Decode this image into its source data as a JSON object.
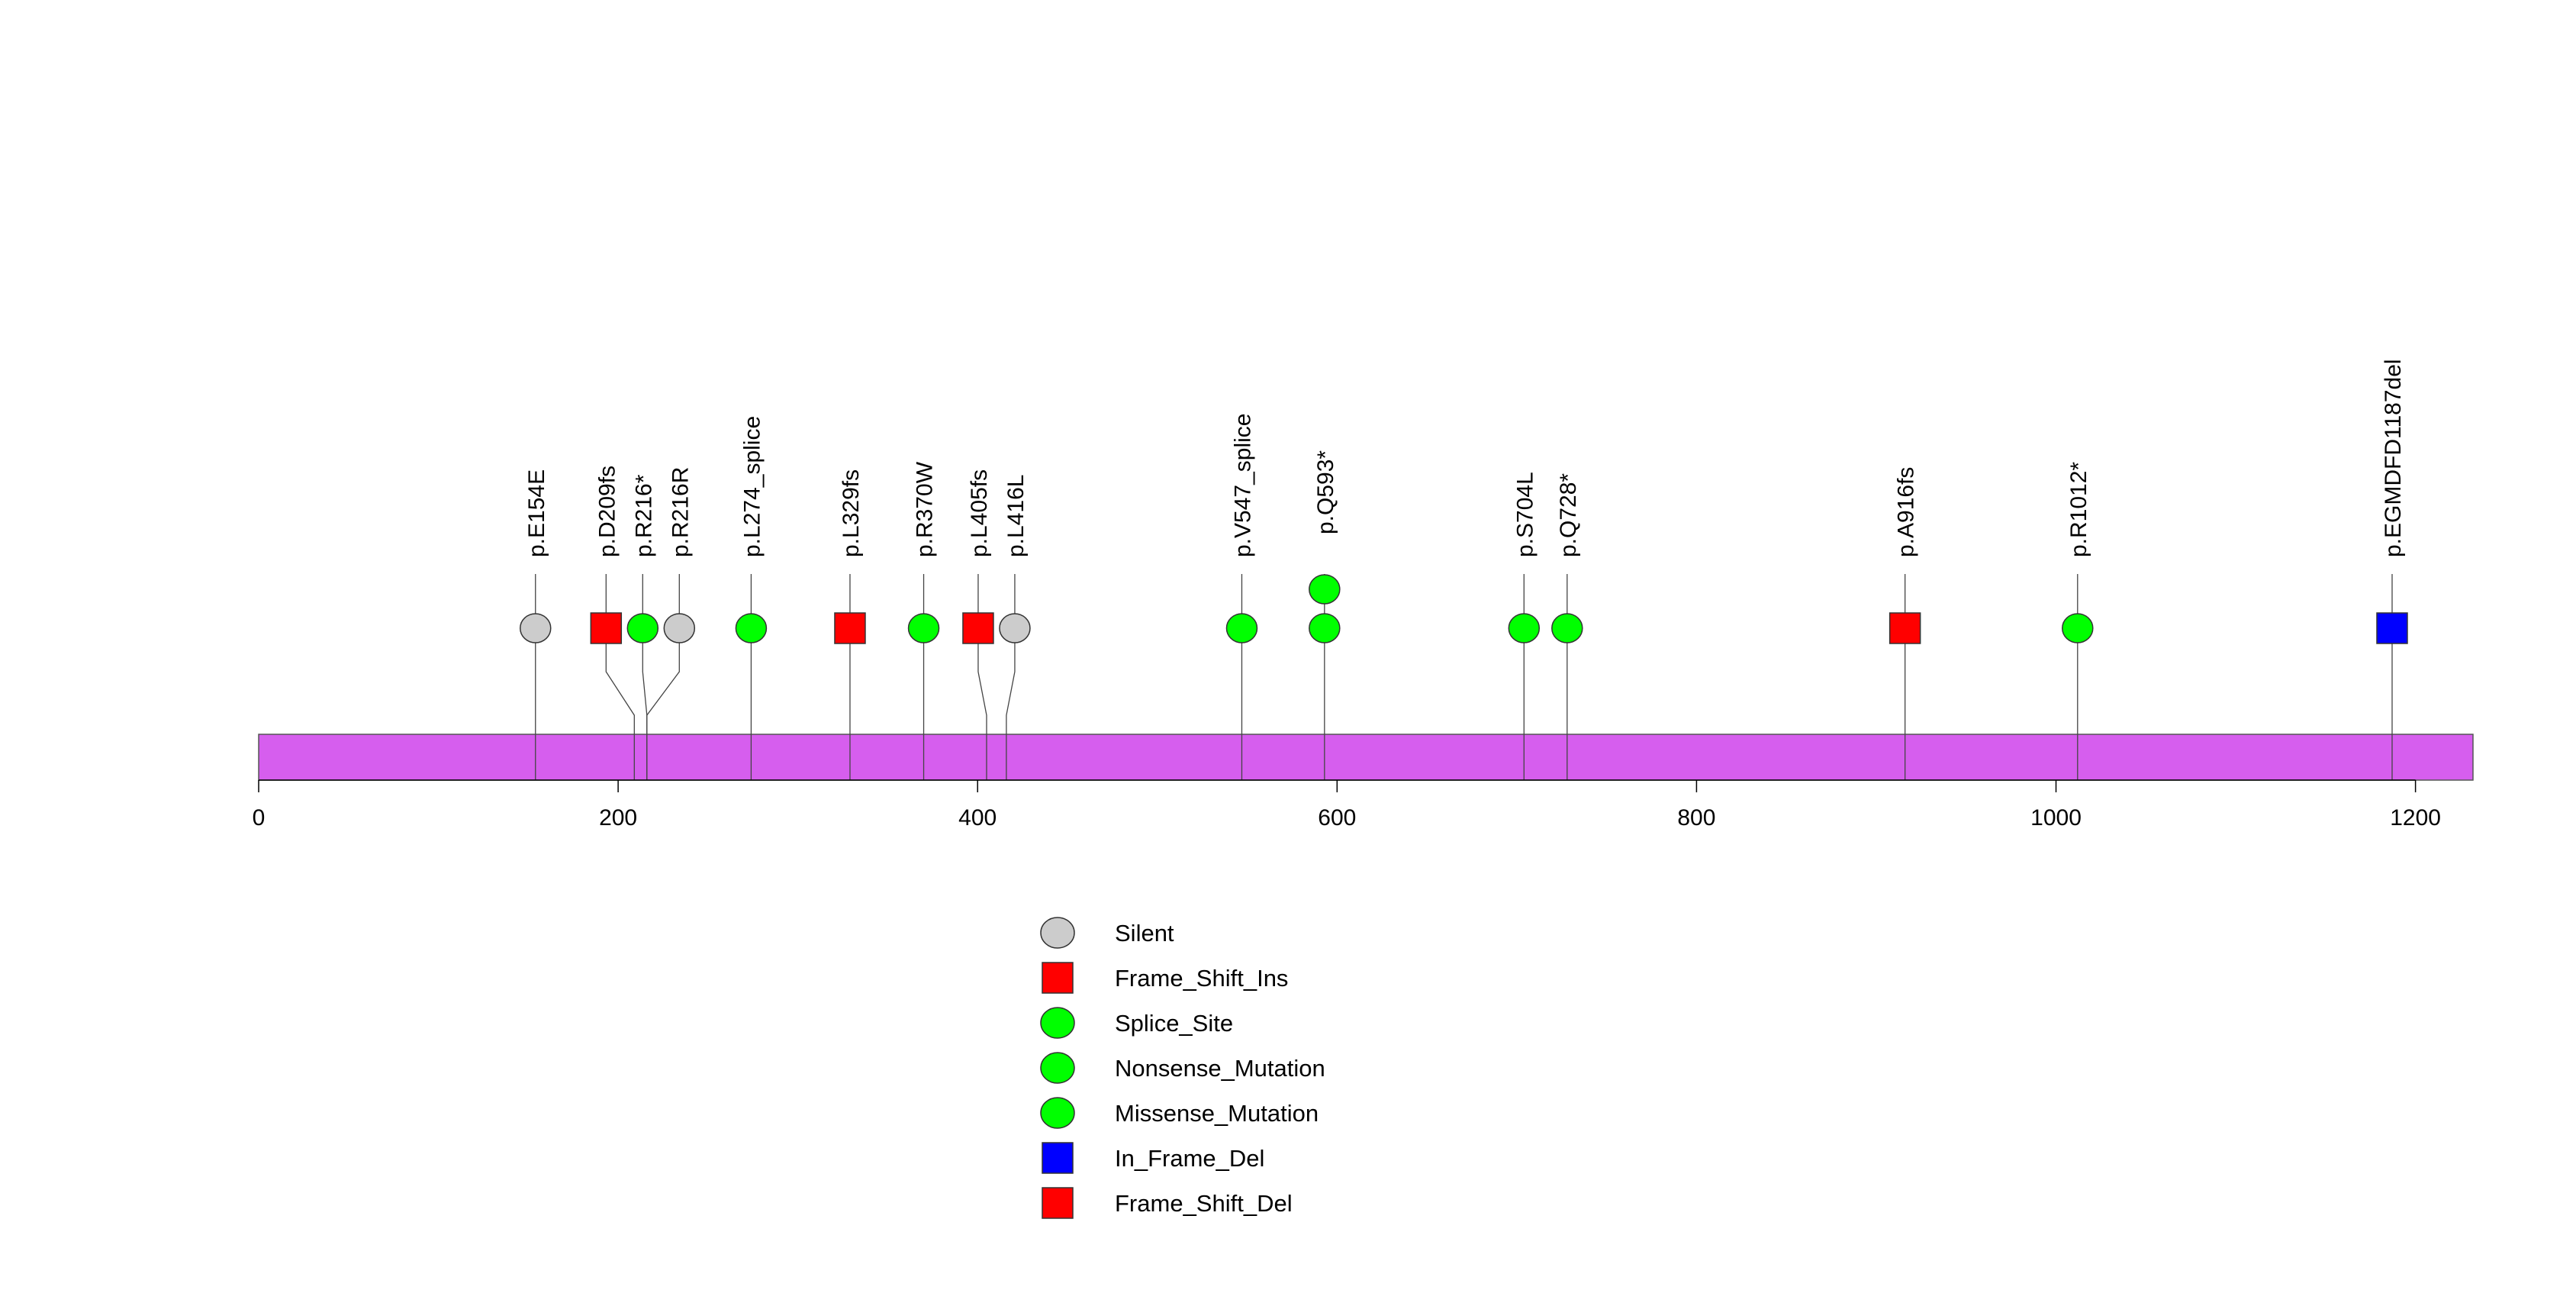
{
  "chart_data": {
    "type": "lollipop",
    "title": "",
    "protein_length": 1232,
    "xlim": [
      0,
      1232
    ],
    "xticks": [
      0,
      200,
      400,
      600,
      800,
      1000,
      1200
    ],
    "xtick_labels": [
      "0",
      "200",
      "400",
      "600",
      "800",
      "1000",
      "1200"
    ],
    "domain_color": "#D65EEE",
    "mutations": [
      {
        "label": "p.E154E",
        "position": 154,
        "type": "Silent",
        "count": 1
      },
      {
        "label": "p.D209fs",
        "position": 209,
        "type": "Frame_Shift_Ins",
        "count": 1
      },
      {
        "label": "p.R216*",
        "position": 216,
        "type": "Nonsense_Mutation",
        "count": 1
      },
      {
        "label": "p.R216R",
        "position": 216,
        "type": "Silent",
        "count": 1
      },
      {
        "label": "p.L274_splice",
        "position": 274,
        "type": "Splice_Site",
        "count": 1
      },
      {
        "label": "p.L329fs",
        "position": 329,
        "type": "Frame_Shift_Ins",
        "count": 1
      },
      {
        "label": "p.R370W",
        "position": 370,
        "type": "Missense_Mutation",
        "count": 1
      },
      {
        "label": "p.L405fs",
        "position": 405,
        "type": "Frame_Shift_Ins",
        "count": 1
      },
      {
        "label": "p.L416L",
        "position": 416,
        "type": "Silent",
        "count": 1
      },
      {
        "label": "p.V547_splice",
        "position": 547,
        "type": "Splice_Site",
        "count": 1
      },
      {
        "label": "p.Q593*",
        "position": 593,
        "type": "Nonsense_Mutation",
        "count": 2
      },
      {
        "label": "p.S704L",
        "position": 704,
        "type": "Missense_Mutation",
        "count": 1
      },
      {
        "label": "p.Q728*",
        "position": 728,
        "type": "Nonsense_Mutation",
        "count": 1
      },
      {
        "label": "p.A916fs",
        "position": 916,
        "type": "Frame_Shift_Ins",
        "count": 1
      },
      {
        "label": "p.R1012*",
        "position": 1012,
        "type": "Nonsense_Mutation",
        "count": 1
      },
      {
        "label": "p.EGMDFD1187del",
        "position": 1187,
        "type": "In_Frame_Del",
        "count": 1
      }
    ],
    "legend": [
      {
        "label": "Silent",
        "shape": "circle",
        "color": "#CCCCCC"
      },
      {
        "label": "Frame_Shift_Ins",
        "shape": "square",
        "color": "#FF0000"
      },
      {
        "label": "Splice_Site",
        "shape": "circle",
        "color": "#00FF00"
      },
      {
        "label": "Nonsense_Mutation",
        "shape": "circle",
        "color": "#00FF00"
      },
      {
        "label": "Missense_Mutation",
        "shape": "circle",
        "color": "#00FF00"
      },
      {
        "label": "In_Frame_Del",
        "shape": "square",
        "color": "#0000FF"
      },
      {
        "label": "Frame_Shift_Del",
        "shape": "square",
        "color": "#FF0000"
      }
    ]
  }
}
